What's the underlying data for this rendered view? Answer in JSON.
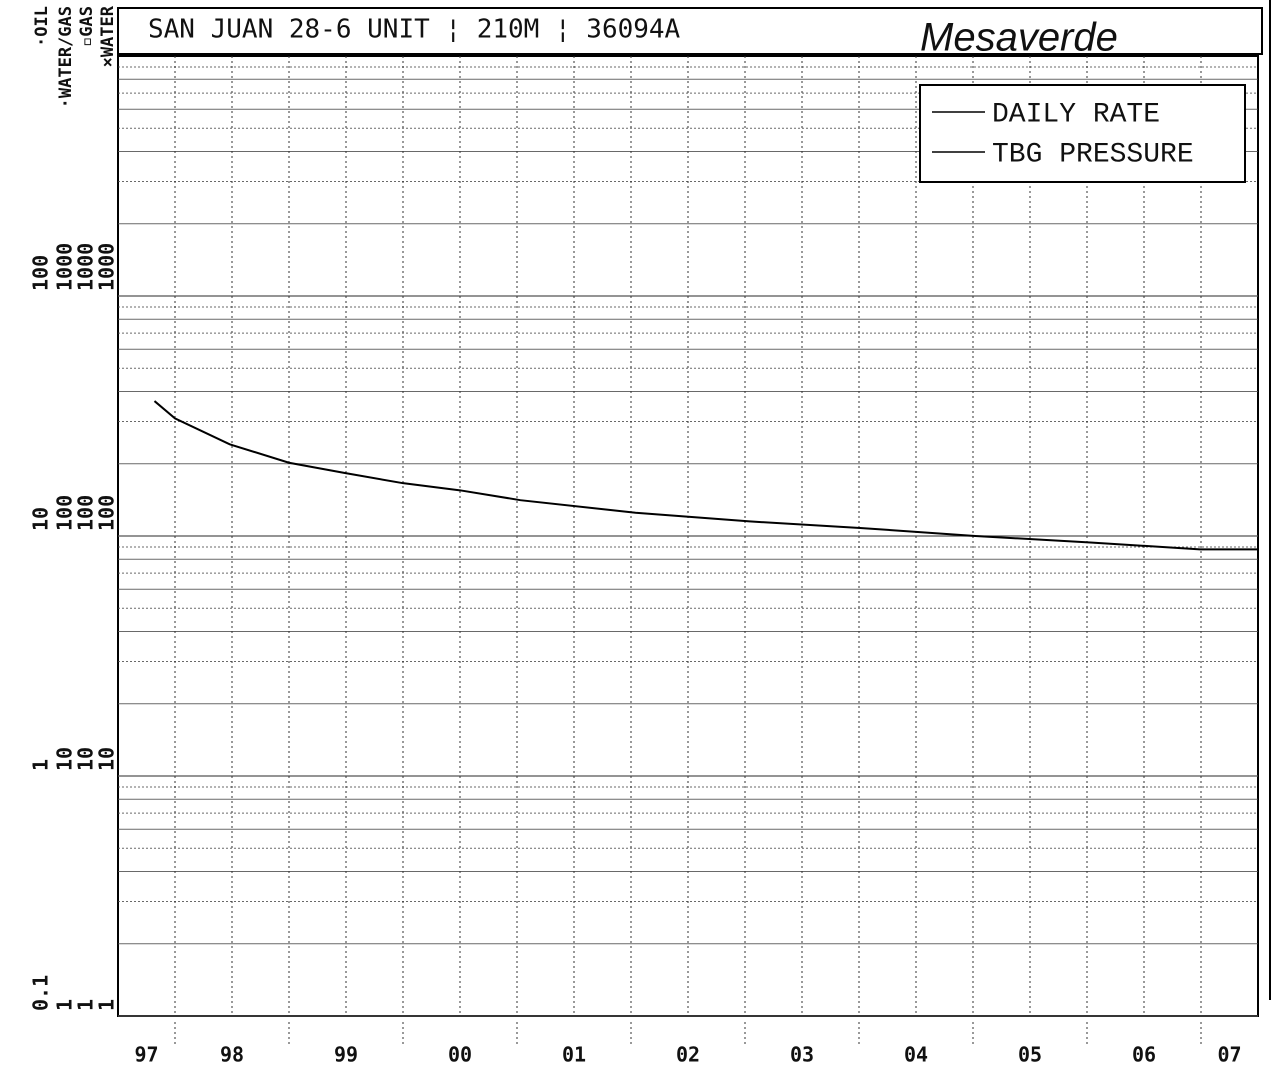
{
  "chart_data": {
    "type": "line",
    "title": "SAN JUAN 28-6 UNIT ¦ 210M ¦ 36094A",
    "annotation": "Mesaverde",
    "categories": [
      "97",
      "98",
      "99",
      "00",
      "01",
      "02",
      "03",
      "04",
      "05",
      "06",
      "07"
    ],
    "xlim": [
      0.5,
      10.5
    ],
    "ylabel": "▫GAS",
    "ylim": [
      1,
      10000
    ],
    "yticks": [
      1,
      10,
      100,
      1000
    ],
    "log_y": true,
    "grid": true,
    "extra_axes": [
      {
        "label": "·OIL",
        "ylim": [
          0.1,
          1000
        ],
        "ticks": [
          0.1,
          1,
          10,
          100
        ]
      },
      {
        "label": "·WATER/GAS",
        "ylim": [
          1,
          10000
        ],
        "ticks": [
          1,
          10,
          100,
          1000
        ]
      },
      {
        "label": "×WATER",
        "ylim": [
          1,
          10000
        ],
        "ticks": [
          1,
          10,
          100,
          1000
        ]
      }
    ],
    "legend": "upper right",
    "series": [
      {
        "name": "DAILY RATE",
        "color": "#000000",
        "x": [
          0.82,
          1.0,
          1.48,
          2.0,
          2.49,
          3.0,
          3.5,
          4.03,
          5.04,
          6.04,
          7.01,
          8.02,
          9.03,
          9.99,
          10.5
        ],
        "values": [
          365,
          309,
          241,
          202,
          183,
          166,
          155,
          141,
          125,
          115,
          108,
          100,
          94,
          88,
          88
        ]
      },
      {
        "name": "TBG PRESSURE",
        "color": "#000000",
        "x": [],
        "values": []
      }
    ]
  }
}
